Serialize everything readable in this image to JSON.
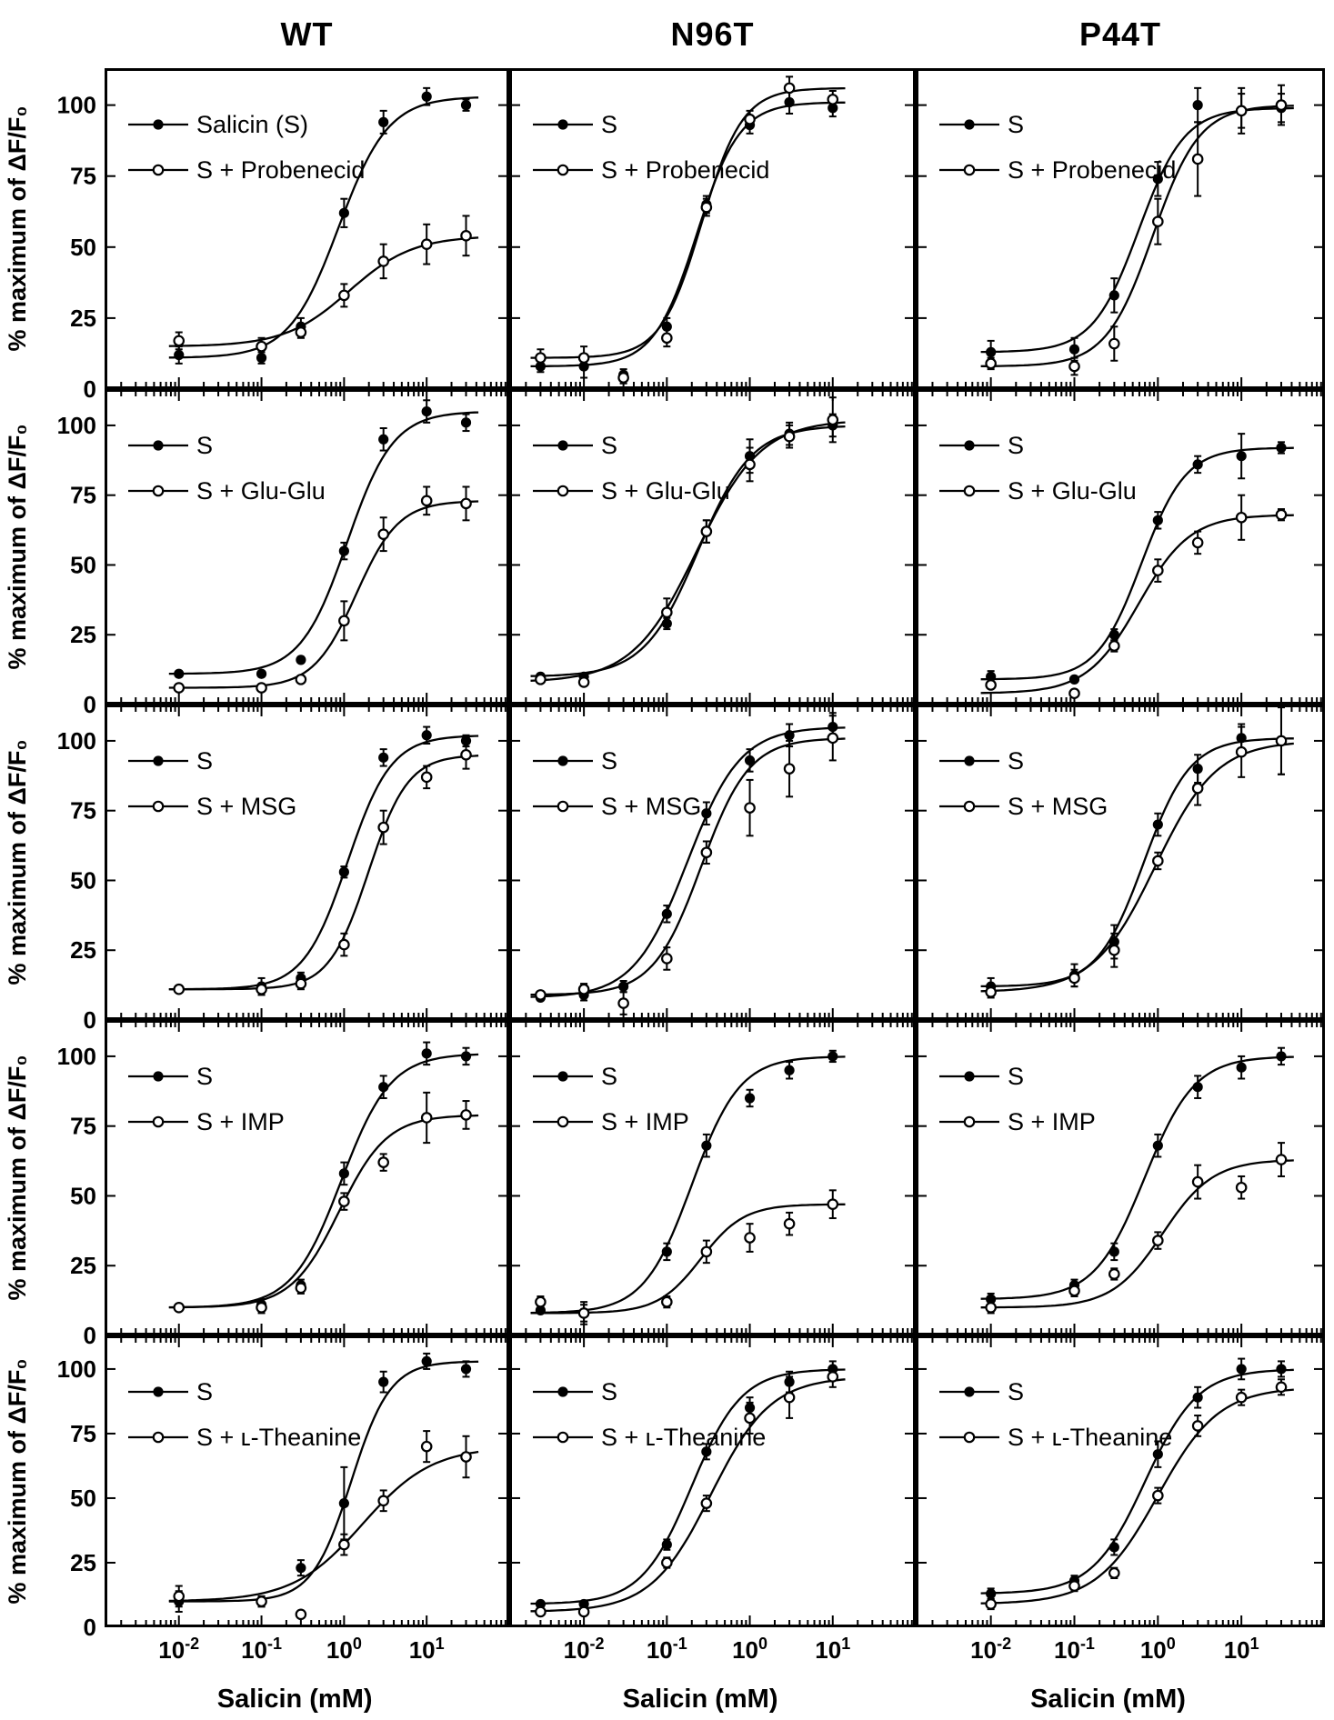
{
  "figure": {
    "column_titles": [
      "WT",
      "N96T",
      "P44T"
    ],
    "row_modifiers": [
      "Probenecid",
      "Glu-Glu",
      "MSG",
      "IMP",
      "ʟ-Theanine"
    ],
    "y_axis_label": "% maximum of ΔF/F₀",
    "x_axis_label": "Salicin (mM)",
    "x_tick_exponents": [
      "-2",
      "-1",
      "0",
      "1"
    ],
    "y_ticks": [
      0,
      25,
      50,
      75,
      100
    ],
    "ylim": [
      0,
      113
    ],
    "xlim_log10": [
      -2.9,
      2.0
    ],
    "colors": {
      "foreground": "#000000",
      "background": "#ffffff"
    }
  },
  "chart_data": [
    {
      "id": "wt-probenecid",
      "column": "WT",
      "modifier": "Probenecid",
      "row": 1,
      "col": 0,
      "type": "scatter-line",
      "xscale": "log",
      "legend": [
        "Salicin (S)",
        "S + Probenecid"
      ],
      "series": [
        {
          "name": "Salicin (S)",
          "marker": "filled",
          "x": [
            0.01,
            0.1,
            0.3,
            1,
            3,
            10,
            30
          ],
          "y": [
            12,
            11,
            22,
            62,
            94,
            103,
            100
          ],
          "err": [
            3,
            2,
            3,
            5,
            4,
            3,
            2
          ]
        },
        {
          "name": "S + Probenecid",
          "marker": "open",
          "x": [
            0.01,
            0.1,
            0.3,
            1,
            3,
            10,
            30
          ],
          "y": [
            17,
            15,
            20,
            33,
            45,
            51,
            54
          ],
          "err": [
            3,
            3,
            2,
            4,
            6,
            7,
            7
          ]
        }
      ]
    },
    {
      "id": "n96t-probenecid",
      "column": "N96T",
      "modifier": "Probenecid",
      "row": 1,
      "col": 1,
      "type": "scatter-line",
      "xscale": "log",
      "legend": [
        "S",
        "S + Probenecid"
      ],
      "series": [
        {
          "name": "S",
          "marker": "filled",
          "x": [
            0.003,
            0.01,
            0.03,
            0.1,
            0.3,
            1,
            3,
            10
          ],
          "y": [
            8,
            8,
            5,
            22,
            65,
            93,
            101,
            99
          ],
          "err": [
            2,
            4,
            2,
            3,
            3,
            3,
            4,
            3
          ]
        },
        {
          "name": "S + Probenecid",
          "marker": "open",
          "x": [
            0.003,
            0.01,
            0.03,
            0.1,
            0.3,
            1,
            3,
            10
          ],
          "y": [
            11,
            11,
            4,
            18,
            64,
            95,
            106,
            102
          ],
          "err": [
            3,
            4,
            2,
            3,
            3,
            3,
            4,
            3
          ]
        }
      ]
    },
    {
      "id": "p44t-probenecid",
      "column": "P44T",
      "modifier": "Probenecid",
      "row": 1,
      "col": 2,
      "type": "scatter-line",
      "xscale": "log",
      "legend": [
        "S",
        "S + Probenecid"
      ],
      "series": [
        {
          "name": "S",
          "marker": "filled",
          "x": [
            0.01,
            0.1,
            0.3,
            1,
            3,
            10,
            30
          ],
          "y": [
            13,
            14,
            33,
            74,
            100,
            98,
            99
          ],
          "err": [
            4,
            4,
            6,
            6,
            6,
            6,
            5
          ]
        },
        {
          "name": "S + Probenecid",
          "marker": "open",
          "x": [
            0.01,
            0.1,
            0.3,
            1,
            3,
            10,
            30
          ],
          "y": [
            9,
            8,
            16,
            59,
            81,
            98,
            100
          ],
          "err": [
            2,
            3,
            6,
            8,
            13,
            8,
            7
          ]
        }
      ]
    },
    {
      "id": "wt-gluglu",
      "column": "WT",
      "modifier": "Glu-Glu",
      "row": 2,
      "col": 0,
      "type": "scatter-line",
      "xscale": "log",
      "legend": [
        "S",
        "S + Glu-Glu"
      ],
      "series": [
        {
          "name": "S",
          "marker": "filled",
          "x": [
            0.01,
            0.1,
            0.3,
            1,
            3,
            10,
            30
          ],
          "y": [
            11,
            11,
            16,
            55,
            95,
            105,
            101
          ],
          "err": [
            1,
            1,
            1,
            3,
            4,
            4,
            3
          ]
        },
        {
          "name": "S + Glu-Glu",
          "marker": "open",
          "x": [
            0.01,
            0.1,
            0.3,
            1,
            3,
            10,
            30
          ],
          "y": [
            6,
            6,
            9,
            30,
            61,
            73,
            72
          ],
          "err": [
            1,
            1,
            1,
            7,
            6,
            5,
            6
          ]
        }
      ]
    },
    {
      "id": "n96t-gluglu",
      "column": "N96T",
      "modifier": "Glu-Glu",
      "row": 2,
      "col": 1,
      "type": "scatter-line",
      "xscale": "log",
      "legend": [
        "S",
        "S + Glu-Glu"
      ],
      "series": [
        {
          "name": "S",
          "marker": "filled",
          "x": [
            0.003,
            0.01,
            0.1,
            0.3,
            1,
            3,
            10
          ],
          "y": [
            10,
            10,
            29,
            62,
            89,
            97,
            100
          ],
          "err": [
            1,
            1,
            2,
            4,
            6,
            4,
            4
          ]
        },
        {
          "name": "S + Glu-Glu",
          "marker": "open",
          "x": [
            0.003,
            0.01,
            0.1,
            0.3,
            1,
            3,
            10
          ],
          "y": [
            9,
            8,
            33,
            62,
            86,
            96,
            102
          ],
          "err": [
            1,
            1,
            5,
            4,
            6,
            4,
            8
          ]
        }
      ]
    },
    {
      "id": "p44t-gluglu",
      "column": "P44T",
      "modifier": "Glu-Glu",
      "row": 2,
      "col": 2,
      "type": "scatter-line",
      "xscale": "log",
      "legend": [
        "S",
        "S + Glu-Glu"
      ],
      "series": [
        {
          "name": "S",
          "marker": "filled",
          "x": [
            0.01,
            0.1,
            0.3,
            1,
            3,
            10,
            30
          ],
          "y": [
            10,
            9,
            25,
            66,
            86,
            89,
            92
          ],
          "err": [
            2,
            1,
            2,
            3,
            3,
            8,
            2
          ]
        },
        {
          "name": "S + Glu-Glu",
          "marker": "open",
          "x": [
            0.01,
            0.1,
            0.3,
            1,
            3,
            10,
            30
          ],
          "y": [
            7,
            4,
            21,
            48,
            58,
            67,
            68
          ],
          "err": [
            1,
            1,
            2,
            4,
            4,
            8,
            2
          ]
        }
      ]
    },
    {
      "id": "wt-msg",
      "column": "WT",
      "modifier": "MSG",
      "row": 3,
      "col": 0,
      "type": "scatter-line",
      "xscale": "log",
      "legend": [
        "S",
        "S + MSG"
      ],
      "series": [
        {
          "name": "S",
          "marker": "filled",
          "x": [
            0.01,
            0.1,
            0.3,
            1,
            3,
            10,
            30
          ],
          "y": [
            11,
            12,
            15,
            53,
            94,
            102,
            100
          ],
          "err": [
            1,
            3,
            2,
            2,
            3,
            3,
            2
          ]
        },
        {
          "name": "S + MSG",
          "marker": "open",
          "x": [
            0.01,
            0.1,
            0.3,
            1,
            3,
            10,
            30
          ],
          "y": [
            11,
            11,
            13,
            27,
            69,
            87,
            95
          ],
          "err": [
            1,
            2,
            2,
            4,
            6,
            4,
            5
          ]
        }
      ]
    },
    {
      "id": "n96t-msg",
      "column": "N96T",
      "modifier": "MSG",
      "row": 3,
      "col": 1,
      "type": "scatter-line",
      "xscale": "log",
      "legend": [
        "S",
        "S + MSG"
      ],
      "series": [
        {
          "name": "S",
          "marker": "filled",
          "x": [
            0.003,
            0.01,
            0.03,
            0.1,
            0.3,
            1,
            3,
            10
          ],
          "y": [
            8,
            9,
            12,
            38,
            74,
            93,
            102,
            105
          ],
          "err": [
            1,
            2,
            2,
            3,
            4,
            4,
            4,
            5
          ]
        },
        {
          "name": "S + MSG",
          "marker": "open",
          "x": [
            0.003,
            0.01,
            0.03,
            0.1,
            0.3,
            1,
            3,
            10
          ],
          "y": [
            9,
            11,
            6,
            22,
            60,
            76,
            90,
            101
          ],
          "err": [
            1,
            2,
            4,
            4,
            4,
            10,
            10,
            8
          ]
        }
      ]
    },
    {
      "id": "p44t-msg",
      "column": "P44T",
      "modifier": "MSG",
      "row": 3,
      "col": 2,
      "type": "scatter-line",
      "xscale": "log",
      "legend": [
        "S",
        "S + MSG"
      ],
      "series": [
        {
          "name": "S",
          "marker": "filled",
          "x": [
            0.01,
            0.1,
            0.3,
            1,
            3,
            10,
            30
          ],
          "y": [
            12,
            16,
            28,
            70,
            90,
            101,
            100
          ],
          "err": [
            3,
            4,
            6,
            4,
            5,
            5,
            12
          ]
        },
        {
          "name": "S + MSG",
          "marker": "open",
          "x": [
            0.01,
            0.1,
            0.3,
            1,
            3,
            10,
            30
          ],
          "y": [
            10,
            15,
            25,
            57,
            83,
            96,
            100
          ],
          "err": [
            2,
            3,
            6,
            3,
            6,
            9,
            12
          ]
        }
      ]
    },
    {
      "id": "wt-imp",
      "column": "WT",
      "modifier": "IMP",
      "row": 4,
      "col": 0,
      "type": "scatter-line",
      "xscale": "log",
      "legend": [
        "S",
        "S + IMP"
      ],
      "series": [
        {
          "name": "S",
          "marker": "filled",
          "x": [
            0.01,
            0.1,
            0.3,
            1,
            3,
            10,
            30
          ],
          "y": [
            10,
            11,
            18,
            58,
            89,
            101,
            100
          ],
          "err": [
            1,
            2,
            2,
            4,
            4,
            4,
            3
          ]
        },
        {
          "name": "S + IMP",
          "marker": "open",
          "x": [
            0.01,
            0.1,
            0.3,
            1,
            3,
            10,
            30
          ],
          "y": [
            10,
            10,
            17,
            48,
            62,
            78,
            79
          ],
          "err": [
            1,
            2,
            2,
            3,
            3,
            9,
            5
          ]
        }
      ]
    },
    {
      "id": "n96t-imp",
      "column": "N96T",
      "modifier": "IMP",
      "row": 4,
      "col": 1,
      "type": "scatter-line",
      "xscale": "log",
      "legend": [
        "S",
        "S + IMP"
      ],
      "series": [
        {
          "name": "S",
          "marker": "filled",
          "x": [
            0.003,
            0.01,
            0.1,
            0.3,
            1,
            3,
            10
          ],
          "y": [
            9,
            8,
            30,
            68,
            85,
            95,
            100
          ],
          "err": [
            1,
            4,
            3,
            4,
            3,
            3,
            2
          ]
        },
        {
          "name": "S + IMP",
          "marker": "open",
          "x": [
            0.003,
            0.01,
            0.1,
            0.3,
            1,
            3,
            10
          ],
          "y": [
            12,
            8,
            12,
            30,
            35,
            40,
            47
          ],
          "err": [
            2,
            3,
            2,
            4,
            5,
            4,
            5
          ]
        }
      ]
    },
    {
      "id": "p44t-imp",
      "column": "P44T",
      "modifier": "IMP",
      "row": 4,
      "col": 2,
      "type": "scatter-line",
      "xscale": "log",
      "legend": [
        "S",
        "S + IMP"
      ],
      "series": [
        {
          "name": "S",
          "marker": "filled",
          "x": [
            0.01,
            0.1,
            0.3,
            1,
            3,
            10,
            30
          ],
          "y": [
            13,
            18,
            30,
            68,
            89,
            96,
            100
          ],
          "err": [
            2,
            2,
            3,
            4,
            4,
            4,
            3
          ]
        },
        {
          "name": "S + IMP",
          "marker": "open",
          "x": [
            0.01,
            0.1,
            0.3,
            1,
            3,
            10,
            30
          ],
          "y": [
            10,
            16,
            22,
            34,
            55,
            53,
            63
          ],
          "err": [
            2,
            2,
            2,
            3,
            6,
            4,
            6
          ]
        }
      ]
    },
    {
      "id": "wt-theanine",
      "column": "WT",
      "modifier": "ʟ-Theanine",
      "row": 5,
      "col": 0,
      "type": "scatter-line",
      "xscale": "log",
      "legend": [
        "S",
        "S + ʟ-Theanine"
      ],
      "series": [
        {
          "name": "S",
          "marker": "filled",
          "x": [
            0.01,
            0.1,
            0.3,
            1,
            3,
            10,
            30
          ],
          "y": [
            10,
            10,
            23,
            48,
            95,
            103,
            100
          ],
          "err": [
            4,
            2,
            3,
            14,
            4,
            3,
            3
          ]
        },
        {
          "name": "S + ʟ-Theanine",
          "marker": "open",
          "x": [
            0.01,
            0.1,
            0.3,
            1,
            3,
            10,
            30
          ],
          "y": [
            12,
            10,
            5,
            32,
            49,
            70,
            66
          ],
          "err": [
            4,
            2,
            1,
            4,
            4,
            6,
            8
          ]
        }
      ]
    },
    {
      "id": "n96t-theanine",
      "column": "N96T",
      "modifier": "ʟ-Theanine",
      "row": 5,
      "col": 1,
      "type": "scatter-line",
      "xscale": "log",
      "legend": [
        "S",
        "S + ʟ-Theanine"
      ],
      "series": [
        {
          "name": "S",
          "marker": "filled",
          "x": [
            0.003,
            0.01,
            0.1,
            0.3,
            1,
            3,
            10
          ],
          "y": [
            9,
            9,
            32,
            68,
            85,
            95,
            100
          ],
          "err": [
            1,
            1,
            2,
            3,
            4,
            4,
            3
          ]
        },
        {
          "name": "S + ʟ-Theanine",
          "marker": "open",
          "x": [
            0.003,
            0.01,
            0.1,
            0.3,
            1,
            3,
            10
          ],
          "y": [
            6,
            6,
            25,
            48,
            81,
            89,
            97
          ],
          "err": [
            1,
            1,
            2,
            3,
            6,
            8,
            4
          ]
        }
      ]
    },
    {
      "id": "p44t-theanine",
      "column": "P44T",
      "modifier": "ʟ-Theanine",
      "row": 5,
      "col": 2,
      "type": "scatter-line",
      "xscale": "log",
      "legend": [
        "S",
        "S + ʟ-Theanine"
      ],
      "series": [
        {
          "name": "S",
          "marker": "filled",
          "x": [
            0.01,
            0.1,
            0.3,
            1,
            3,
            10,
            30
          ],
          "y": [
            13,
            18,
            31,
            67,
            89,
            100,
            100
          ],
          "err": [
            2,
            2,
            3,
            5,
            4,
            4,
            3
          ]
        },
        {
          "name": "S + ʟ-Theanine",
          "marker": "open",
          "x": [
            0.01,
            0.1,
            0.3,
            1,
            3,
            10,
            30
          ],
          "y": [
            9,
            16,
            21,
            51,
            78,
            89,
            93
          ],
          "err": [
            2,
            2,
            2,
            3,
            4,
            3,
            3
          ]
        }
      ]
    }
  ]
}
